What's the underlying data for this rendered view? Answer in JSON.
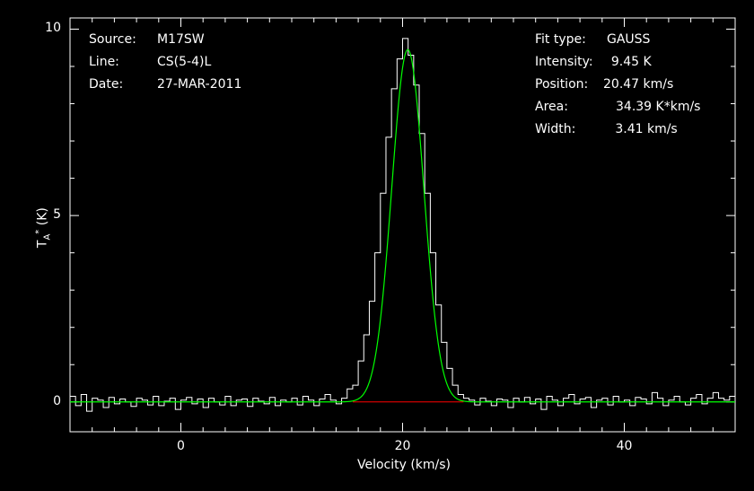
{
  "chart_data": {
    "type": "line",
    "xlabel": "Velocity (km/s)",
    "ylabel_main": "T",
    "ylabel_sub": "A",
    "ylabel_sup": "*",
    "ylabel_unit": " (K)",
    "xlim": [
      -10,
      50
    ],
    "ylim": [
      -0.8,
      10.3
    ],
    "xticks": [
      0,
      20,
      40
    ],
    "xtick_labels": [
      "0",
      "20",
      "40"
    ],
    "yticks": [
      0,
      5,
      10
    ],
    "ytick_labels": [
      "0",
      "5",
      "10"
    ],
    "grid": false,
    "colors": {
      "spectrum": "#ffffff",
      "fit": "#00ff00",
      "baseline": "#ff0000",
      "frame": "#ffffff"
    },
    "left_info": [
      {
        "key": "Source:",
        "value": "M17SW"
      },
      {
        "key": "Line:",
        "value": "CS(5-4)L"
      },
      {
        "key": "Date:",
        "value": "27-MAR-2011"
      }
    ],
    "fit_info": [
      {
        "key": "Fit type:",
        "value": "GAUSS"
      },
      {
        "key": "Intensity:",
        "value": "  9.45 K"
      },
      {
        "key": "Position:",
        "value": "20.47 km/s"
      },
      {
        "key": "Area:",
        "value": "34.39 K*km/s"
      },
      {
        "key": "Width:",
        "value": "   3.41 km/s"
      }
    ],
    "series": [
      {
        "name": "spectrum",
        "style": "histogram",
        "x_start": -10,
        "x_step": 0.5,
        "values": [
          0.15,
          -0.1,
          0.2,
          -0.25,
          0.1,
          0.05,
          -0.15,
          0.12,
          -0.05,
          0.08,
          0.0,
          -0.12,
          0.1,
          0.05,
          -0.08,
          0.15,
          -0.1,
          0.02,
          0.1,
          -0.2,
          0.05,
          0.12,
          -0.05,
          0.08,
          -0.15,
          0.1,
          0.0,
          -0.08,
          0.15,
          -0.1,
          0.05,
          0.08,
          -0.12,
          0.1,
          0.02,
          -0.05,
          0.12,
          -0.1,
          0.05,
          0.0,
          0.1,
          -0.08,
          0.15,
          0.05,
          -0.1,
          0.08,
          0.2,
          0.05,
          -0.05,
          0.1,
          0.35,
          0.45,
          1.1,
          1.8,
          2.7,
          4.0,
          5.6,
          7.1,
          8.4,
          9.2,
          9.75,
          9.3,
          8.5,
          7.2,
          5.6,
          4.0,
          2.6,
          1.6,
          0.9,
          0.45,
          0.2,
          0.1,
          0.05,
          -0.08,
          0.1,
          0.02,
          -0.1,
          0.08,
          0.05,
          -0.15,
          0.1,
          0.0,
          0.12,
          -0.05,
          0.08,
          -0.2,
          0.15,
          0.05,
          -0.1,
          0.1,
          0.2,
          -0.05,
          0.08,
          0.12,
          -0.15,
          0.05,
          0.1,
          -0.08,
          0.15,
          0.0,
          0.05,
          -0.1,
          0.12,
          0.08,
          -0.05,
          0.25,
          0.1,
          -0.1,
          0.05,
          0.15,
          0.0,
          -0.08,
          0.1,
          0.2,
          -0.05,
          0.1,
          0.25,
          0.1,
          0.05,
          0.15
        ]
      },
      {
        "name": "fit",
        "style": "gaussian",
        "amplitude": 9.45,
        "center": 20.47,
        "fwhm": 3.41
      },
      {
        "name": "baseline",
        "style": "segment",
        "x": [
          15.5,
          25.5
        ],
        "y": [
          0,
          0
        ]
      }
    ]
  }
}
